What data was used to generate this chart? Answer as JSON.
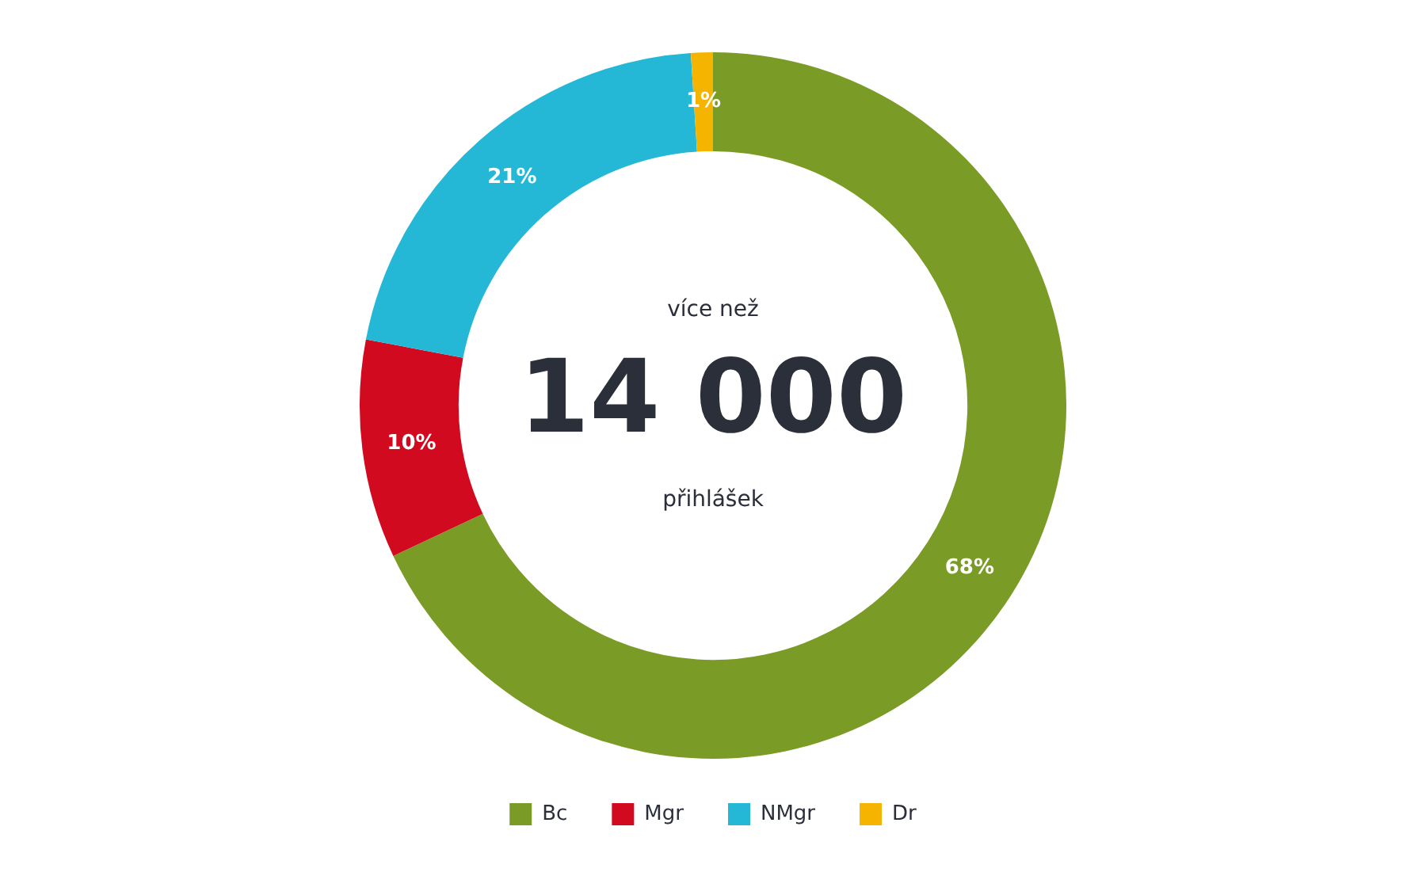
{
  "chart_data": {
    "type": "donut",
    "categories": [
      "Bc",
      "Mgr",
      "NMgr",
      "Dr"
    ],
    "values": [
      68,
      10,
      21,
      1
    ],
    "colors": [
      "#7a9c26",
      "#d20a20",
      "#24b8d6",
      "#f5b400"
    ],
    "value_labels": [
      "68%",
      "10%",
      "21%",
      "1%"
    ],
    "annotations": [
      "více než",
      "14 000",
      "přihlášek"
    ],
    "legend": "bottom"
  }
}
